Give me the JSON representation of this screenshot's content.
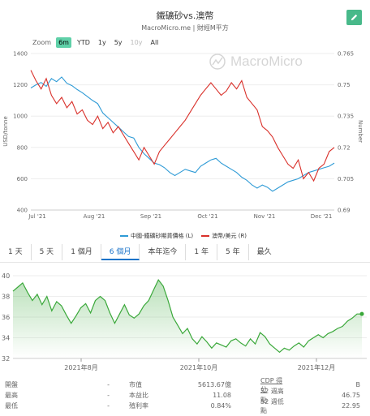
{
  "header": {
    "title": "鐵礦砂vs.澳幣",
    "subtitle": "MacroMicro.me | 財經M平方",
    "watermark": "MacroMicro"
  },
  "zoom": {
    "label": "Zoom",
    "buttons": [
      "6m",
      "YTD",
      "1y",
      "5y",
      "10y",
      "All"
    ],
    "active": "6m"
  },
  "chart_data": [
    {
      "type": "line",
      "xlabel": "",
      "ylabel": "USD/tonne",
      "y2label": "Number",
      "x_ticks": [
        "Jul '21",
        "Aug '21",
        "Sep '21",
        "Oct '21",
        "Nov '21",
        "Dec '21"
      ],
      "y_ticks": [
        400,
        600,
        800,
        1000,
        1200,
        1400
      ],
      "y2_ticks": [
        0.69,
        0.705,
        0.72,
        0.735,
        0.75,
        0.765
      ],
      "ylim": [
        400,
        1400
      ],
      "y2lim": [
        0.69,
        0.765
      ],
      "series": [
        {
          "name": "中國-鐵礦砂期貨價格 (L)",
          "color": "#2f9bd6",
          "axis": "left",
          "values": [
            1180,
            1200,
            1215,
            1190,
            1240,
            1220,
            1250,
            1210,
            1195,
            1170,
            1150,
            1125,
            1100,
            1080,
            1020,
            990,
            960,
            930,
            900,
            870,
            860,
            800,
            760,
            730,
            700,
            690,
            670,
            640,
            620,
            640,
            660,
            650,
            640,
            680,
            700,
            720,
            730,
            700,
            680,
            660,
            640,
            610,
            590,
            560,
            540,
            560,
            545,
            520,
            540,
            560,
            580,
            590,
            600,
            620,
            640,
            650,
            660,
            670,
            680,
            700
          ]
        },
        {
          "name": "澳幣/美元 (R)",
          "color": "#d9302a",
          "axis": "right",
          "values": [
            0.757,
            0.752,
            0.748,
            0.753,
            0.745,
            0.741,
            0.744,
            0.739,
            0.742,
            0.736,
            0.738,
            0.733,
            0.731,
            0.735,
            0.729,
            0.732,
            0.727,
            0.73,
            0.726,
            0.722,
            0.718,
            0.714,
            0.72,
            0.716,
            0.712,
            0.718,
            0.721,
            0.724,
            0.727,
            0.73,
            0.733,
            0.737,
            0.741,
            0.745,
            0.748,
            0.751,
            0.748,
            0.745,
            0.747,
            0.751,
            0.748,
            0.752,
            0.744,
            0.741,
            0.738,
            0.73,
            0.728,
            0.725,
            0.72,
            0.716,
            0.712,
            0.71,
            0.714,
            0.705,
            0.708,
            0.704,
            0.71,
            0.712,
            0.718,
            0.72
          ]
        }
      ]
    },
    {
      "type": "area",
      "xlabel": "",
      "ylabel": "",
      "x_ticks": [
        "2021年8月",
        "2021年10月",
        "2021年12月"
      ],
      "y_ticks": [
        32,
        34,
        36,
        38,
        40
      ],
      "ylim": [
        32,
        40
      ],
      "series": [
        {
          "name": "",
          "color": "#3aa83a",
          "values": [
            38.5,
            38.9,
            39.3,
            38.4,
            37.6,
            38.2,
            37.2,
            38.0,
            36.6,
            37.5,
            37.1,
            36.2,
            35.4,
            36.1,
            36.9,
            37.3,
            36.4,
            37.6,
            38.0,
            37.6,
            36.4,
            35.4,
            36.3,
            37.2,
            36.2,
            35.9,
            36.3,
            37.1,
            37.6,
            38.6,
            39.6,
            39.0,
            37.6,
            36.0,
            35.2,
            34.4,
            34.9,
            33.9,
            33.4,
            34.1,
            33.6,
            33.0,
            33.5,
            33.3,
            33.1,
            33.7,
            33.9,
            33.5,
            33.2,
            33.9,
            33.4,
            34.5,
            34.1,
            33.4,
            33.0,
            32.6,
            33.0,
            32.8,
            33.2,
            33.5,
            33.1,
            33.7,
            34.0,
            34.3,
            34.0,
            34.4,
            34.6,
            34.9,
            35.1,
            35.6,
            35.9,
            36.3,
            36.3
          ]
        }
      ]
    }
  ],
  "legend": [
    {
      "label": "中國-鐵礦砂期貨價格 (L)",
      "color": "#2f9bd6"
    },
    {
      "label": "澳幣/美元 (R)",
      "color": "#d9302a"
    }
  ],
  "tabs": [
    "1 天",
    "5 天",
    "1 個月",
    "6 個月",
    "本年迄今",
    "1 年",
    "5 年",
    "最久"
  ],
  "active_tab": "6 個月",
  "stats": [
    [
      "開盤",
      "-",
      "市值",
      "5613.67億",
      "CDP 得分",
      "B"
    ],
    [
      "最高",
      "-",
      "本益比",
      "11.08",
      "52 週高點",
      "46.75"
    ],
    [
      "最低",
      "-",
      "殖利率",
      "0.84%",
      "52 週低點",
      "22.95"
    ]
  ],
  "colors": {
    "accent": "#48b98a",
    "zoom_active": "#5fd0a8",
    "tab_active": "#1a73c9",
    "area_line": "#3aa83a"
  }
}
